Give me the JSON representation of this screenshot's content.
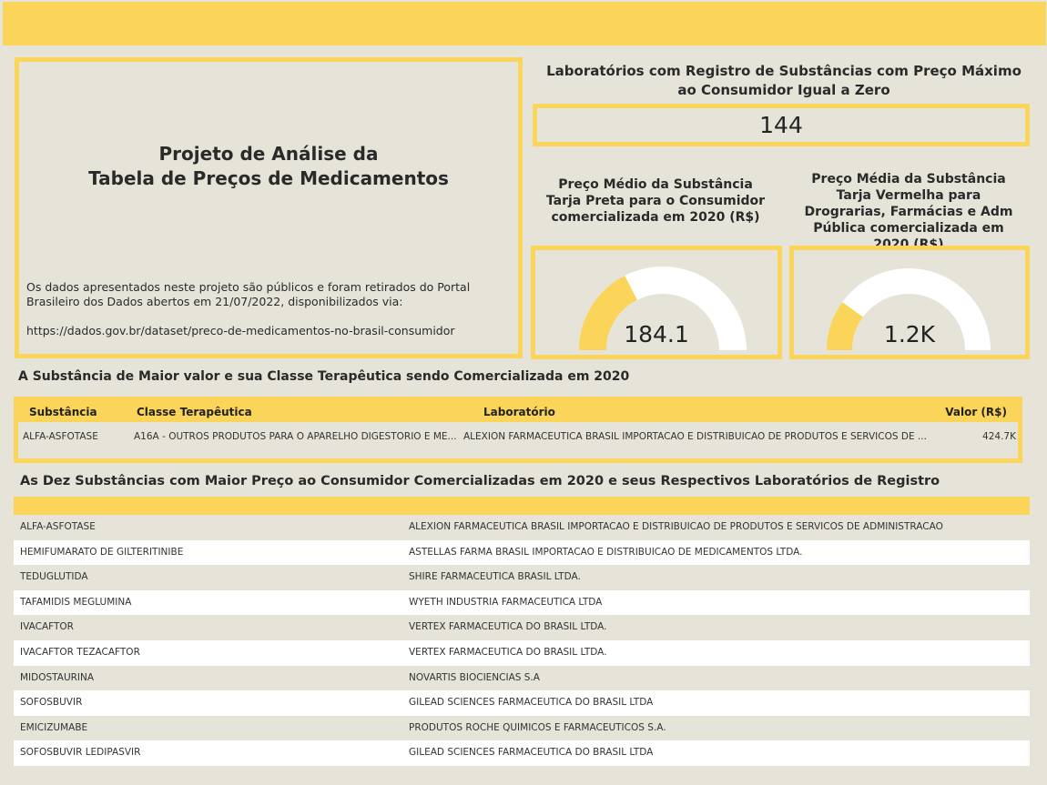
{
  "header": {
    "title_line1": "Projeto de Análise da",
    "title_line2": "Tabela de Preços de Medicamentos",
    "description": "Os dados apresentados neste projeto são públicos e foram retirados do Portal Brasileiro dos Dados abertos em 21/07/2022, disponibilizados via:",
    "url": "https://dados.gov.br/dataset/preco-de-medicamentos-no-brasil-consumidor"
  },
  "kpi": {
    "title_line1": "Laboratórios com Registro de Substâncias com Preço Máximo",
    "title_line2": "ao Consumidor Igual a Zero",
    "value": "144"
  },
  "gauges": [
    {
      "title": "Preço Médio da Substância Tarja Preta para o Consumidor comercializada em 2020 (R$)",
      "value_label": "184.1",
      "fill_fraction": 0.35,
      "fill_color": "#fbd55a",
      "track_color": "#ffffff"
    },
    {
      "title": "Preço Média da Substância Tarja Vermelha para Drograrias, Farmácias e Adm Pública comercializada em 2020 (R$)",
      "value_label": "1.2K",
      "fill_fraction": 0.2,
      "fill_color": "#fbd55a",
      "track_color": "#ffffff"
    }
  ],
  "top_substance": {
    "section_title": "A Substância de Maior valor e sua Classe Terapêutica sendo Comercializada em 2020",
    "columns": [
      "Substância",
      "Classe Terapêutica",
      "Laboratório",
      "Valor (R$)"
    ],
    "row": {
      "substancia": "ALFA-ASFOTASE",
      "classe": "A16A - OUTROS PRODUTOS PARA O APARELHO DIGESTORIO E ME...",
      "laboratorio": "ALEXION FARMACEUTICA BRASIL IMPORTACAO E DISTRIBUICAO DE PRODUTOS E SERVICOS DE ...",
      "valor": "424.7K"
    }
  },
  "top_ten": {
    "section_title": "As Dez Substâncias com Maior Preço ao Consumidor Comercializadas em 2020 e seus Respectivos Laboratórios de Registro",
    "rows": [
      {
        "substancia": "ALFA-ASFOTASE",
        "laboratorio": "ALEXION FARMACEUTICA BRASIL IMPORTACAO E DISTRIBUICAO DE PRODUTOS E SERVICOS DE ADMINISTRACAO"
      },
      {
        "substancia": "HEMIFUMARATO DE GILTERITINIBE",
        "laboratorio": "ASTELLAS FARMA BRASIL IMPORTACAO E DISTRIBUICAO DE MEDICAMENTOS LTDA."
      },
      {
        "substancia": "TEDUGLUTIDA",
        "laboratorio": "SHIRE FARMACEUTICA BRASIL LTDA."
      },
      {
        "substancia": "TAFAMIDIS MEGLUMINA",
        "laboratorio": "WYETH INDUSTRIA FARMACEUTICA LTDA"
      },
      {
        "substancia": "IVACAFTOR",
        "laboratorio": "VERTEX FARMACEUTICA DO BRASIL LTDA."
      },
      {
        "substancia": "IVACAFTOR TEZACAFTOR",
        "laboratorio": "VERTEX FARMACEUTICA DO BRASIL LTDA."
      },
      {
        "substancia": "MIDOSTAURINA",
        "laboratorio": "NOVARTIS BIOCIENCIAS S.A"
      },
      {
        "substancia": "SOFOSBUVIR",
        "laboratorio": "GILEAD SCIENCES FARMACEUTICA DO BRASIL LTDA"
      },
      {
        "substancia": "EMICIZUMABE",
        "laboratorio": "PRODUTOS ROCHE QUIMICOS E FARMACEUTICOS S.A."
      },
      {
        "substancia": "SOFOSBUVIR LEDIPASVIR",
        "laboratorio": "GILEAD SCIENCES FARMACEUTICA DO BRASIL LTDA"
      }
    ]
  },
  "colors": {
    "accent": "#fbd55a",
    "background": "#e6e3d8"
  }
}
